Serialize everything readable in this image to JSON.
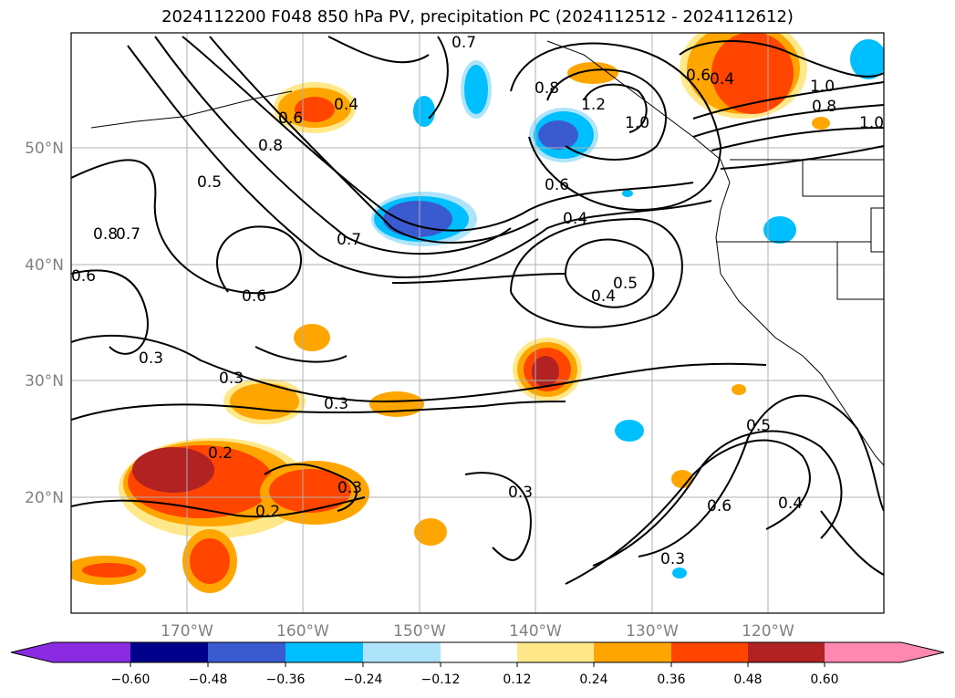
{
  "title": "2024112200 F048 850 hPa PV, precipitation PC (2024112512 - 2024112612)",
  "map": {
    "lat_labels": [
      "50°N",
      "40°N",
      "30°N",
      "20°N"
    ],
    "lon_labels": [
      "170°W",
      "160°W",
      "150°W",
      "140°W",
      "130°W",
      "120°W"
    ],
    "contour_labels": [
      "0.7",
      "0.4",
      "0.6",
      "0.8",
      "0.5",
      "0.8",
      "0.7",
      "0.6",
      "0.3",
      "0.3",
      "0.6",
      "0.7",
      "0.4",
      "0.5",
      "0.4",
      "0.2",
      "0.2",
      "0.3",
      "0.3",
      "0.3",
      "0.5",
      "0.6",
      "0.4",
      "0.3",
      "0.8",
      "1.2",
      "1.0",
      "0.6",
      "1.0",
      "0.8",
      "1.0",
      "0.6",
      "0.4"
    ]
  },
  "colorbar": {
    "colors": [
      "#8a2be2",
      "#00008b",
      "#3a5bd0",
      "#00bfff",
      "#aee4fa",
      "#ffffff",
      "#ffe88a",
      "#ffa500",
      "#ff4500",
      "#b22222",
      "#ff88b0"
    ],
    "ticks": [
      "−0.60",
      "−0.48",
      "−0.36",
      "−0.24",
      "−0.12",
      "0.12",
      "0.24",
      "0.36",
      "0.48",
      "0.60"
    ]
  }
}
